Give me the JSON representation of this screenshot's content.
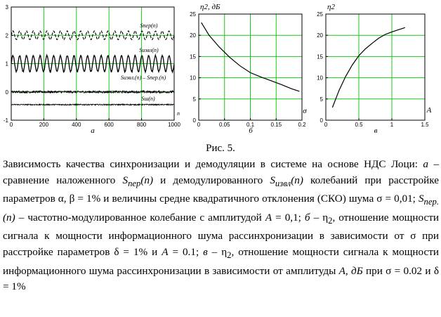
{
  "figure": {
    "caption_title": "Рис. 5.",
    "caption_text": "Зависимость качества синхронизации и демодуляции в системе на основе НДС Лоци: а – сравнение наложенного Sпер(n) и демодулированного Sизвл(n) колебаний при расстройке параметров α, β = 1% и величины средне квадратичного отклонения (СКО) шума σ = 0,01; Sпер.(n) – частотно-модулированное колебание с амплитудой A = 0,1; б – η2, отношение мощности сигнала к мощности информационного шума рассинхронизации в зависимости от σ при расстройке параметров δ = 1% и A = 0.1; в – η2, отношение мощности сигнала к мощности информационного шума рассинхронизации в зависимости от амплитуды A, дБ при σ = 0.02 и δ = 1%",
    "caption_parts": {
      "p1": "Зависимость качества синхронизации и демодуляции в системе на основе НДС Лоци: ",
      "a": "а",
      "p2": " – сравнение наложенного ",
      "S1": "S",
      "S1sub": "пер",
      "n1": "(n)",
      "p3": " и демодулированного ",
      "S2": "S",
      "S2sub": "извл",
      "n2": "(n)",
      "p4": " колебаний при расстройке параметров α, β = 1% и величины средне квадратичного отклонения (СКО) шума σ = 0,01; ",
      "S3": "S",
      "S3sub": "пер.",
      "n3": "(n)",
      "p5": " – частотно-модулированное колебание с амплитудой ",
      "A1": "A",
      "p6": " = 0,1; ",
      "b": "б",
      "p7": " – η",
      "p7sub": "2",
      "p8": ", отношение мощности сигнала к мощности информационного шума рассинхронизации в зависимости от σ при расстройке параметров δ = 1% и ",
      "A2": "A",
      "p9": " = 0.1; ",
      "v": "в",
      "p10": " – η",
      "p10sub": "2",
      "p11": ", отношение мощности сигнала к мощности информационного шума рассинхронизации в зависимости от амплитуды ",
      "A3": "A",
      "p12": ", ",
      "dB": "дБ",
      "p13": " при σ = 0.02 и δ = 1%"
    }
  },
  "chart_data": [
    {
      "type": "line",
      "panel_label": "а",
      "xlabel": "n",
      "x_ticks": [
        0,
        200,
        400,
        600,
        800,
        1000
      ],
      "y_ticks": [
        -1,
        0,
        1,
        2,
        3
      ],
      "xlim": [
        0,
        1000
      ],
      "ylim": [
        -1,
        3
      ],
      "grid": true,
      "curve_labels": [
        "Sпер(n)",
        "Sизвл(n)",
        "Sизвл.(n) – Sпер.(n)",
        "Sш(n)"
      ],
      "series": [
        {
          "name": "Sпер(n)",
          "offset": 2.0,
          "amplitude": 0.15,
          "cycles": 24,
          "noise": 0.01
        },
        {
          "name": "Sизвл(n)",
          "offset": 1.0,
          "amplitude": 0.28,
          "cycles": 24,
          "noise": 0.02
        },
        {
          "name": "Sизвл.(n) – Sпер.(n)",
          "offset": 0.0,
          "amplitude": 0.0,
          "cycles": 0,
          "noise": 0.04
        },
        {
          "name": "Sш(n)",
          "offset": -0.45,
          "amplitude": 0.0,
          "cycles": 0,
          "noise": 0.02
        }
      ]
    },
    {
      "type": "line",
      "panel_label": "б",
      "ylabel": "η2, дБ",
      "xlabel": "σ",
      "x_ticks": [
        0,
        0.05,
        0.1,
        0.15,
        0.2
      ],
      "x_tick_labels": [
        "0",
        "0.05",
        "0.1",
        "0.15",
        "0.2"
      ],
      "y_ticks": [
        0,
        5,
        10,
        15,
        20,
        25
      ],
      "xlim": [
        0,
        0.2
      ],
      "ylim": [
        0,
        25
      ],
      "grid": true,
      "x": [
        0.005,
        0.02,
        0.04,
        0.06,
        0.08,
        0.1,
        0.12,
        0.14,
        0.16,
        0.18,
        0.195
      ],
      "y": [
        23,
        20,
        17.2,
        14.8,
        12.8,
        11.2,
        10.2,
        9.3,
        8.4,
        7.4,
        6.8
      ]
    },
    {
      "type": "line",
      "panel_label": "в",
      "ylabel": "η2",
      "xlabel": "A",
      "x_ticks": [
        0,
        0.5,
        1,
        1.5
      ],
      "x_tick_labels": [
        "0",
        "0.5",
        "1",
        "1.5"
      ],
      "y_ticks": [
        0,
        5,
        10,
        15,
        20,
        25
      ],
      "xlim": [
        0,
        1.5
      ],
      "ylim": [
        0,
        25
      ],
      "grid": true,
      "x": [
        0.1,
        0.2,
        0.3,
        0.4,
        0.5,
        0.6,
        0.7,
        0.8,
        0.9,
        1.0,
        1.1,
        1.2
      ],
      "y": [
        3,
        7,
        10.3,
        13,
        15.2,
        16.8,
        18.1,
        19.3,
        20.2,
        20.8,
        21.3,
        21.8
      ]
    }
  ]
}
